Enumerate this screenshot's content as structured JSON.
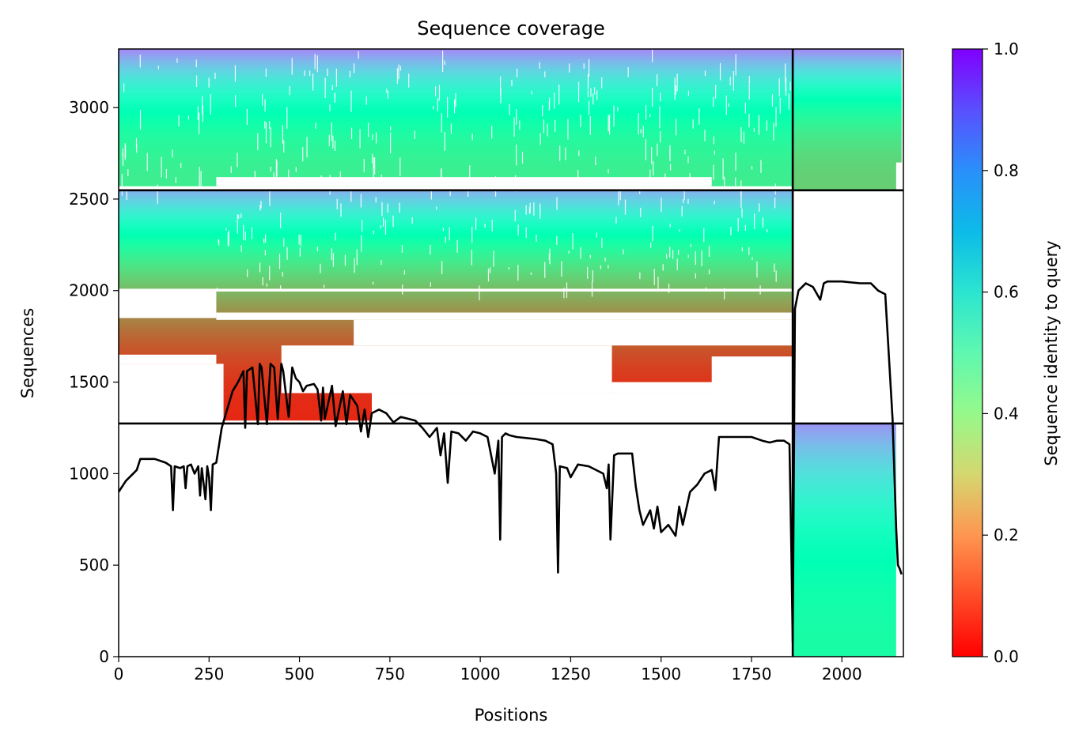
{
  "chart_data": {
    "type": "heatmap",
    "title": "Sequence coverage",
    "xlabel": "Positions",
    "ylabel": "Sequences",
    "xlim": [
      0,
      2170
    ],
    "ylim": [
      0,
      3320
    ],
    "xticks": [
      0,
      250,
      500,
      750,
      1000,
      1250,
      1500,
      1750,
      2000
    ],
    "yticks": [
      0,
      500,
      1000,
      1500,
      2000,
      2500,
      3000
    ],
    "grid": false,
    "colormap": "rainbow_r",
    "colorbar": {
      "label": "Sequence identity to query",
      "range": [
        0.0,
        1.0
      ],
      "ticks": [
        "0.0",
        "0.2",
        "0.4",
        "0.6",
        "0.8",
        "1.0"
      ]
    },
    "separators": {
      "vertical_x": [
        1864
      ],
      "horizontal_y": [
        1274,
        2548
      ]
    },
    "coverage_blocks": [
      {
        "x": [
          0,
          1864
        ],
        "y": [
          2548,
          3320
        ],
        "identity_bottom": 0.38,
        "identity_top": 0.82
      },
      {
        "x": [
          1864,
          2165
        ],
        "y": [
          2548,
          3320
        ],
        "identity_bottom": 0.3,
        "identity_top": 0.82
      },
      {
        "x": [
          0,
          1864
        ],
        "y": [
          1274,
          2548
        ],
        "identity_bottom": 0.05,
        "identity_top": 0.75
      },
      {
        "x": [
          1864,
          2165
        ],
        "y": [
          0,
          1274
        ],
        "identity_bottom": 0.45,
        "identity_top": 0.8
      }
    ],
    "coverage_line": {
      "color": "#000000",
      "x": [
        0,
        20,
        40,
        50,
        60,
        100,
        130,
        145,
        150,
        155,
        170,
        180,
        185,
        190,
        200,
        210,
        220,
        225,
        230,
        240,
        245,
        250,
        255,
        260,
        270,
        285,
        300,
        315,
        330,
        345,
        350,
        355,
        370,
        385,
        390,
        395,
        410,
        420,
        430,
        440,
        450,
        455,
        470,
        480,
        490,
        500,
        510,
        520,
        540,
        550,
        560,
        565,
        570,
        590,
        600,
        620,
        630,
        640,
        660,
        670,
        680,
        690,
        700,
        720,
        740,
        760,
        780,
        800,
        820,
        840,
        860,
        880,
        890,
        900,
        910,
        920,
        940,
        960,
        980,
        1000,
        1020,
        1040,
        1050,
        1055,
        1060,
        1070,
        1080,
        1100,
        1150,
        1180,
        1200,
        1210,
        1215,
        1220,
        1240,
        1250,
        1270,
        1300,
        1340,
        1350,
        1355,
        1360,
        1370,
        1380,
        1420,
        1430,
        1440,
        1450,
        1470,
        1480,
        1490,
        1500,
        1520,
        1540,
        1550,
        1560,
        1580,
        1600,
        1620,
        1640,
        1650,
        1660,
        1700,
        1750,
        1780,
        1800,
        1820,
        1840,
        1855,
        1860,
        1864,
        1870,
        1880,
        1900,
        1920,
        1940,
        1950,
        1960,
        2000,
        2050,
        2080,
        2100,
        2120,
        2140,
        2150,
        2155,
        2160,
        2165,
        2170
      ],
      "y": [
        900,
        960,
        1000,
        1020,
        1080,
        1080,
        1060,
        1040,
        800,
        1040,
        1030,
        1040,
        920,
        1040,
        1050,
        1000,
        1040,
        880,
        1030,
        860,
        1040,
        980,
        800,
        1050,
        1060,
        1250,
        1350,
        1450,
        1500,
        1560,
        1250,
        1560,
        1580,
        1270,
        1600,
        1580,
        1270,
        1600,
        1580,
        1300,
        1600,
        1560,
        1310,
        1580,
        1520,
        1500,
        1450,
        1480,
        1490,
        1460,
        1290,
        1470,
        1300,
        1480,
        1260,
        1450,
        1270,
        1430,
        1370,
        1230,
        1350,
        1200,
        1330,
        1350,
        1330,
        1280,
        1310,
        1300,
        1290,
        1250,
        1200,
        1250,
        1100,
        1220,
        950,
        1230,
        1220,
        1180,
        1230,
        1220,
        1200,
        1000,
        1180,
        640,
        1200,
        1220,
        1210,
        1200,
        1190,
        1180,
        1160,
        1000,
        460,
        1040,
        1030,
        980,
        1050,
        1040,
        1000,
        920,
        1050,
        640,
        1100,
        1110,
        1110,
        930,
        800,
        720,
        800,
        700,
        820,
        680,
        720,
        660,
        820,
        720,
        900,
        940,
        1000,
        1020,
        910,
        1200,
        1200,
        1200,
        1180,
        1170,
        1180,
        1180,
        1160,
        600,
        80,
        1900,
        2000,
        2040,
        2020,
        1950,
        2040,
        2050,
        2050,
        2040,
        2040,
        2000,
        1980,
        1300,
        700,
        500,
        480,
        450
      ]
    }
  }
}
